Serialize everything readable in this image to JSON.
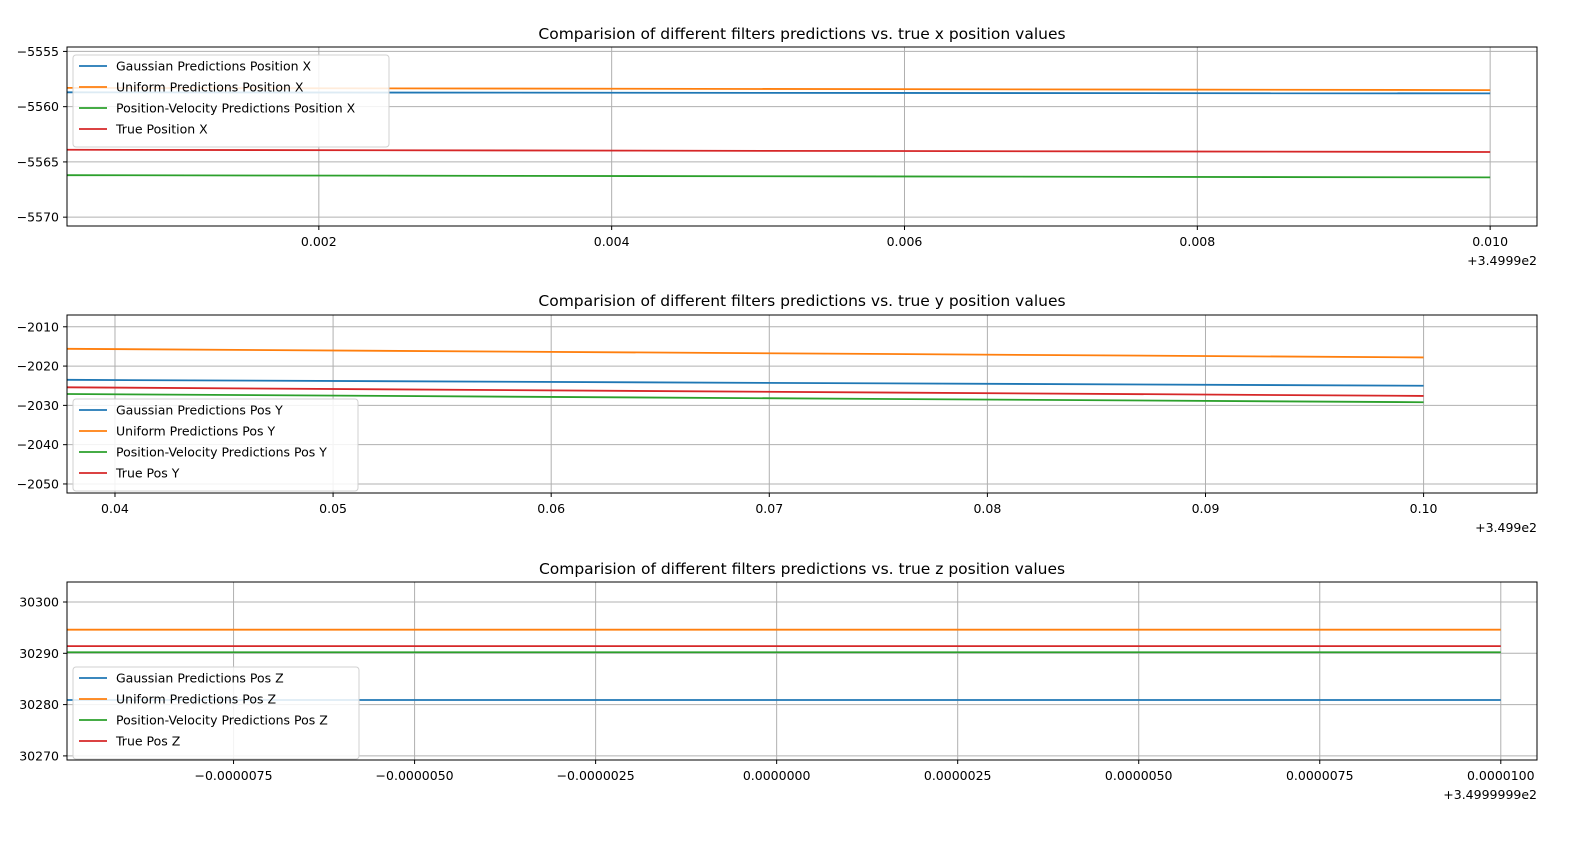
{
  "chart_data": [
    {
      "type": "line",
      "title": "Comparision of different filters predictions vs. true x position values",
      "xlabel": "",
      "ylabel": "",
      "x_offset_label": "+3.4999e2",
      "xlim": [
        0.00028,
        0.01032
      ],
      "ylim": [
        -5570.8,
        -5554.6
      ],
      "xticks": [
        0.002,
        0.004,
        0.006,
        0.008,
        0.01
      ],
      "xtick_labels": [
        "0.002",
        "0.004",
        "0.006",
        "0.008",
        "0.010"
      ],
      "yticks": [
        -5555,
        -5560,
        -5565,
        -5570
      ],
      "ytick_labels": [
        "−5555",
        "−5560",
        "−5565",
        "−5570"
      ],
      "grid": true,
      "legend_position": "upper left",
      "x": [
        0.00028,
        0.01
      ],
      "series": [
        {
          "name": "Gaussian Predictions Position X",
          "color": "#1f77b4",
          "values": [
            -5558.7,
            -5558.8
          ]
        },
        {
          "name": "Uniform Predictions Position X",
          "color": "#ff7f0e",
          "values": [
            -5558.3,
            -5558.5
          ]
        },
        {
          "name": "Position-Velocity Predictions Position X",
          "color": "#2ca02c",
          "values": [
            -5566.2,
            -5566.4
          ]
        },
        {
          "name": "True Position X",
          "color": "#d62728",
          "values": [
            -5563.9,
            -5564.1
          ]
        }
      ]
    },
    {
      "type": "line",
      "title": "Comparision of different filters predictions vs. true y position values",
      "xlabel": "",
      "ylabel": "",
      "x_offset_label": "+3.499e2",
      "xlim": [
        0.0378,
        0.1052
      ],
      "ylim": [
        -2052.3,
        -2007.0
      ],
      "xticks": [
        0.04,
        0.05,
        0.06,
        0.07,
        0.08,
        0.09,
        0.1
      ],
      "xtick_labels": [
        "0.04",
        "0.05",
        "0.06",
        "0.07",
        "0.08",
        "0.09",
        "0.10"
      ],
      "yticks": [
        -2010,
        -2020,
        -2030,
        -2040,
        -2050
      ],
      "ytick_labels": [
        "−2010",
        "−2020",
        "−2030",
        "−2040",
        "−2050"
      ],
      "grid": true,
      "legend_position": "lower left",
      "x": [
        0.0378,
        0.1
      ],
      "series": [
        {
          "name": "Gaussian Predictions Pos Y",
          "color": "#1f77b4",
          "values": [
            -2023.5,
            -2025.0
          ]
        },
        {
          "name": "Uniform Predictions Pos Y",
          "color": "#ff7f0e",
          "values": [
            -2015.6,
            -2017.8
          ]
        },
        {
          "name": "Position-Velocity Predictions Pos Y",
          "color": "#2ca02c",
          "values": [
            -2027.1,
            -2029.2
          ]
        },
        {
          "name": "True Pos Y",
          "color": "#d62728",
          "values": [
            -2025.4,
            -2027.6
          ]
        }
      ]
    },
    {
      "type": "line",
      "title": "Comparision of different filters predictions vs. true z position values",
      "xlabel": "",
      "ylabel": "",
      "x_offset_label": "+3.4999999e2",
      "xlim": [
        -9.8e-06,
        1.05e-05
      ],
      "ylim": [
        30269.2,
        30303.9
      ],
      "xticks": [
        -7.5e-06,
        -5e-06,
        -2.5e-06,
        0.0,
        2.5e-06,
        5e-06,
        7.5e-06,
        1e-05
      ],
      "xtick_labels": [
        "−0.0000075",
        "−0.0000050",
        "−0.0000025",
        "0.0000000",
        "0.0000025",
        "0.0000050",
        "0.0000075",
        "0.0000100"
      ],
      "yticks": [
        30300,
        30290,
        30280,
        30270
      ],
      "ytick_labels": [
        "30300",
        "30290",
        "30280",
        "30270"
      ],
      "grid": true,
      "legend_position": "lower left",
      "x": [
        -9.8e-06,
        1e-05
      ],
      "series": [
        {
          "name": "Gaussian Predictions Pos Z",
          "color": "#1f77b4",
          "values": [
            30280.9,
            30280.9
          ]
        },
        {
          "name": "Uniform Predictions Pos Z",
          "color": "#ff7f0e",
          "values": [
            30294.6,
            30294.6
          ]
        },
        {
          "name": "Position-Velocity Predictions Pos Z",
          "color": "#2ca02c",
          "values": [
            30290.2,
            30290.2
          ]
        },
        {
          "name": "True Pos Z",
          "color": "#d62728",
          "values": [
            30291.4,
            30291.4
          ]
        }
      ]
    }
  ]
}
